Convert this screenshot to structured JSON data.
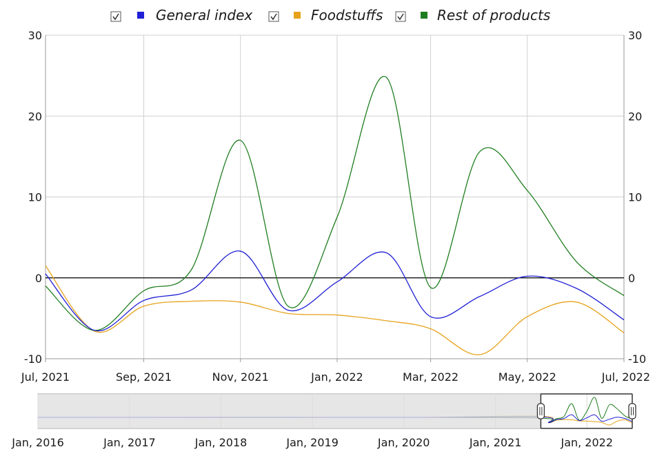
{
  "colors": {
    "general": "#1f1fd6",
    "foodstuffs": "#e6a21a",
    "rest": "#1e7d1e",
    "zero_line": "#000000",
    "grid": "#d0d0d0",
    "navigator_shade": "#dedede"
  },
  "legend": {
    "items": [
      {
        "label": "General index",
        "color": "#1f1fd6",
        "checked": true,
        "icon": "checkbox-checked-icon"
      },
      {
        "label": "Foodstuffs",
        "color": "#e6a21a",
        "checked": true,
        "icon": "checkbox-checked-icon"
      },
      {
        "label": "Rest of products",
        "color": "#1e7d1e",
        "checked": true,
        "icon": "checkbox-checked-icon"
      }
    ]
  },
  "chart_data": {
    "type": "line",
    "x_dates": [
      "2021-07-01",
      "2021-08-01",
      "2021-09-01",
      "2021-10-01",
      "2021-11-01",
      "2021-12-01",
      "2022-01-01",
      "2022-02-01",
      "2022-03-01",
      "2022-04-01",
      "2022-05-01",
      "2022-06-01",
      "2022-07-01"
    ],
    "x_tick_labels": [
      "Jul, 2021",
      "Sep, 2021",
      "Nov, 2021",
      "Jan, 2022",
      "Mar, 2022",
      "May, 2022",
      "Jul, 2022"
    ],
    "x_tick_dates": [
      "2021-07-01",
      "2021-09-01",
      "2021-11-01",
      "2022-01-01",
      "2022-03-01",
      "2022-05-01",
      "2022-07-01"
    ],
    "ylim": [
      -10,
      30
    ],
    "y_ticks": [
      -10,
      0,
      10,
      20,
      30
    ],
    "y_tick_labels": [
      "-10",
      "0",
      "10",
      "20",
      "30"
    ],
    "grid": true,
    "legend_position": "top",
    "series": [
      {
        "name": "General index",
        "key": "general",
        "values": [
          0.5,
          -6.5,
          -2.8,
          -1.5,
          3.3,
          -4.0,
          -0.5,
          3.1,
          -4.8,
          -2.3,
          0.2,
          -1.3,
          -5.2
        ]
      },
      {
        "name": "Foodstuffs",
        "key": "foodstuffs",
        "values": [
          1.5,
          -6.6,
          -3.5,
          -2.9,
          -3.0,
          -4.4,
          -4.6,
          -5.3,
          -6.3,
          -9.5,
          -4.8,
          -3.0,
          -6.8
        ]
      },
      {
        "name": "Rest of products",
        "key": "rest",
        "values": [
          -1.0,
          -6.5,
          -1.6,
          1.0,
          17.0,
          -3.5,
          7.5,
          24.8,
          -1.2,
          15.6,
          10.8,
          2.0,
          -2.2
        ]
      }
    ]
  },
  "navigator": {
    "tick_labels": [
      "Jan, 2016",
      "Jan, 2017",
      "Jan, 2018",
      "Jan, 2019",
      "Jan, 2020",
      "Jan, 2021",
      "Jan, 2022"
    ],
    "tick_dates": [
      "2016-01-01",
      "2017-01-01",
      "2018-01-01",
      "2019-01-01",
      "2020-01-01",
      "2021-01-01",
      "2022-01-01"
    ],
    "range_start": "2016-01-01",
    "range_end": "2022-07-01",
    "selected_start": "2021-07-01",
    "selected_end": "2022-07-01"
  }
}
